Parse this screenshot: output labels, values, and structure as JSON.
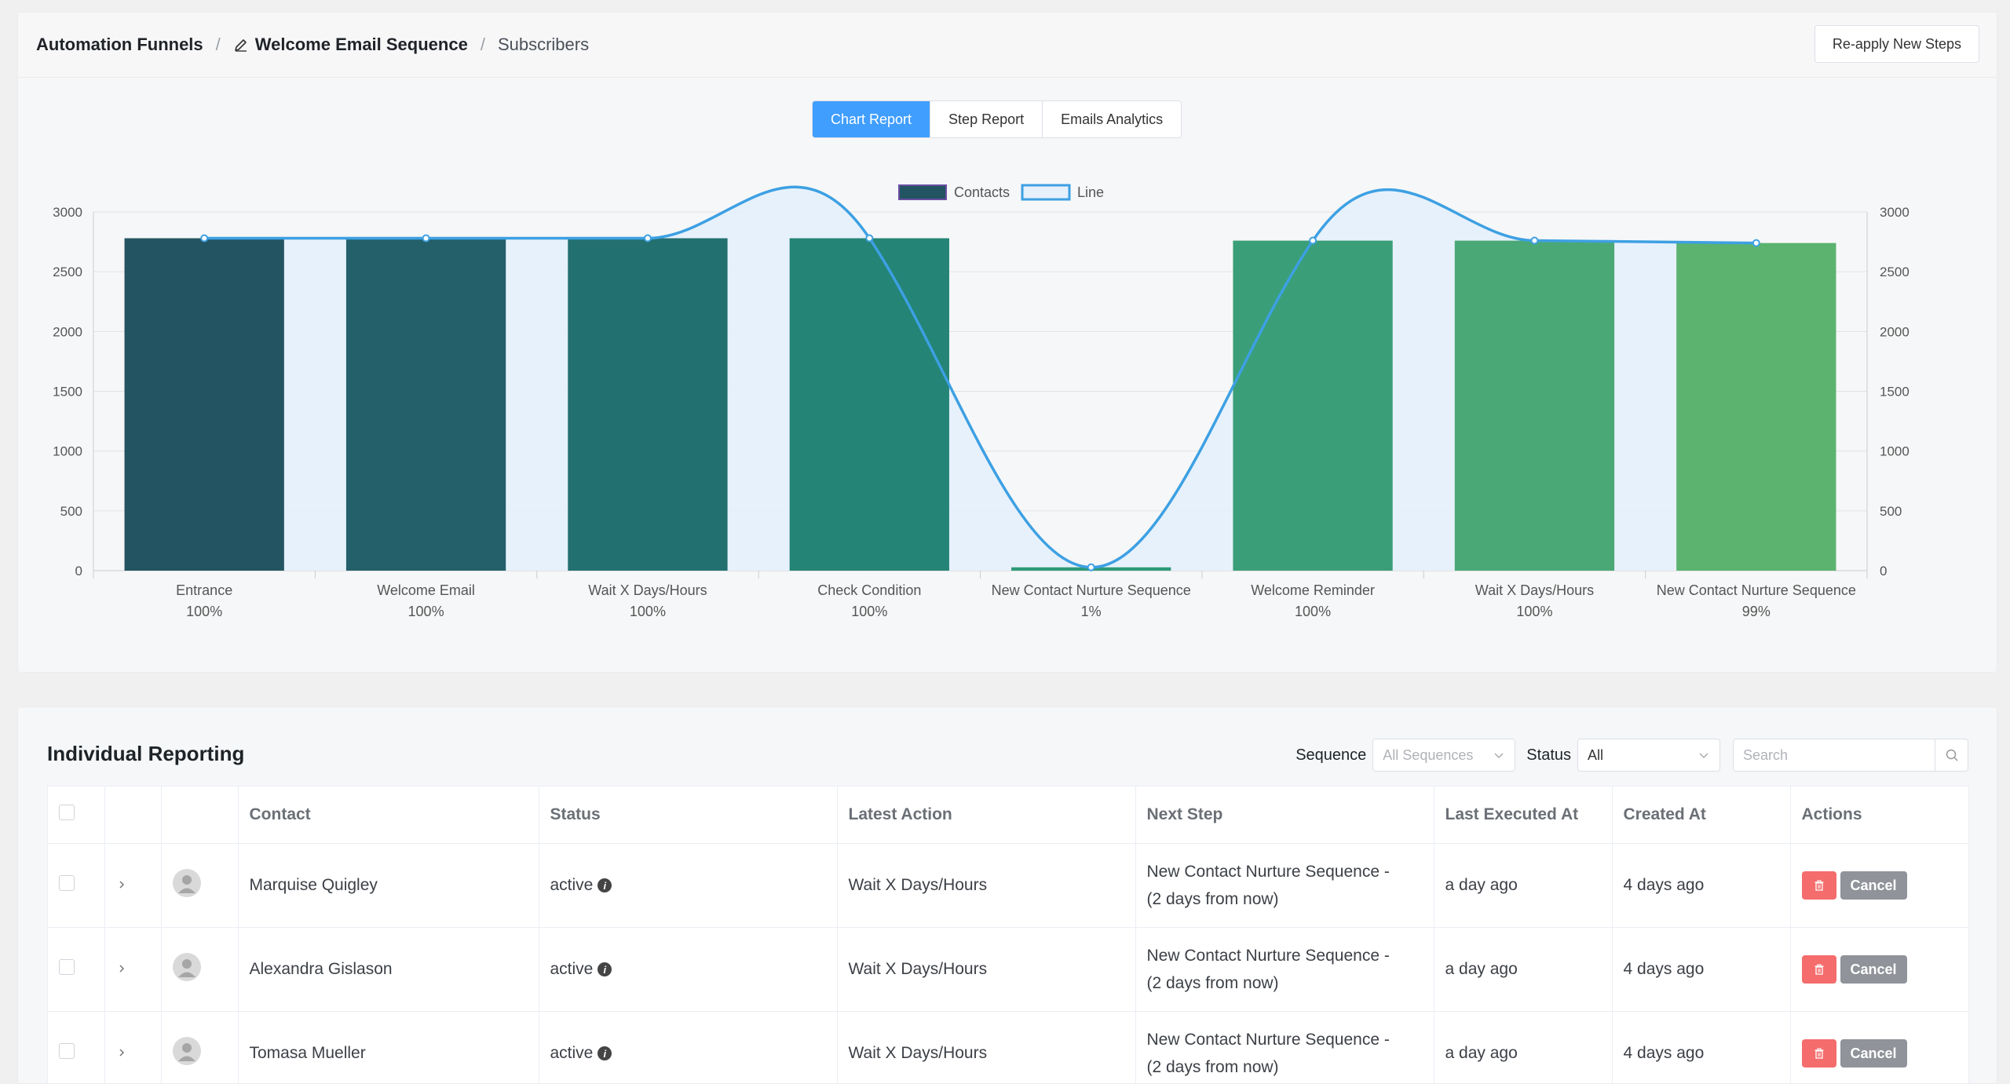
{
  "breadcrumb": {
    "root": "Automation Funnels",
    "funnel": "Welcome Email Sequence",
    "current": "Subscribers"
  },
  "header": {
    "reapply_label": "Re-apply New Steps"
  },
  "tabs": [
    {
      "label": "Chart Report",
      "active": true
    },
    {
      "label": "Step Report",
      "active": false
    },
    {
      "label": "Emails Analytics",
      "active": false
    }
  ],
  "chart_data": {
    "type": "bar",
    "legend": [
      "Contacts",
      "Line"
    ],
    "legend_position": "top-center",
    "categories": [
      "Entrance",
      "Welcome Email",
      "Wait X Days/Hours",
      "Check Condition",
      "New Contact Nurture Sequence",
      "Welcome Reminder",
      "Wait X Days/Hours",
      "New Contact Nurture Sequence"
    ],
    "percents": [
      "100%",
      "100%",
      "100%",
      "100%",
      "1%",
      "100%",
      "100%",
      "99%"
    ],
    "series": [
      {
        "name": "Contacts",
        "type": "bar",
        "values": [
          2780,
          2780,
          2780,
          2780,
          28,
          2760,
          2760,
          2740
        ]
      },
      {
        "name": "Line",
        "type": "line",
        "values": [
          2780,
          2780,
          2780,
          2780,
          28,
          2760,
          2760,
          2740
        ]
      }
    ],
    "bar_colors": [
      "#235462",
      "#23606a",
      "#237070",
      "#248476",
      "#2e9a7a",
      "#3a9f78",
      "#4aa877",
      "#5bb36f"
    ],
    "line_color": "#3da0e3",
    "ylim": [
      0,
      3000
    ],
    "yticks": [
      0,
      500,
      1000,
      1500,
      2000,
      2500,
      3000
    ],
    "grid": true
  },
  "reporting": {
    "title": "Individual Reporting",
    "sequence_label": "Sequence",
    "sequence_placeholder": "All Sequences",
    "status_label": "Status",
    "status_value": "All",
    "search_placeholder": "Search",
    "columns": [
      "Contact",
      "Status",
      "Latest Action",
      "Next Step",
      "Last Executed At",
      "Created At",
      "Actions"
    ],
    "rows": [
      {
        "contact": "Marquise Quigley",
        "status": "active",
        "latest_action": "Wait X Days/Hours",
        "next_step_1": "New Contact Nurture Sequence -",
        "next_step_2": "(2 days from now)",
        "last_executed": "a day ago",
        "created": "4 days ago",
        "cancel": "Cancel"
      },
      {
        "contact": "Alexandra Gislason",
        "status": "active",
        "latest_action": "Wait X Days/Hours",
        "next_step_1": "New Contact Nurture Sequence -",
        "next_step_2": "(2 days from now)",
        "last_executed": "a day ago",
        "created": "4 days ago",
        "cancel": "Cancel"
      },
      {
        "contact": "Tomasa Mueller",
        "status": "active",
        "latest_action": "Wait X Days/Hours",
        "next_step_1": "New Contact Nurture Sequence -",
        "next_step_2": "(2 days from now)",
        "last_executed": "a day ago",
        "created": "4 days ago",
        "cancel": "Cancel"
      }
    ]
  }
}
